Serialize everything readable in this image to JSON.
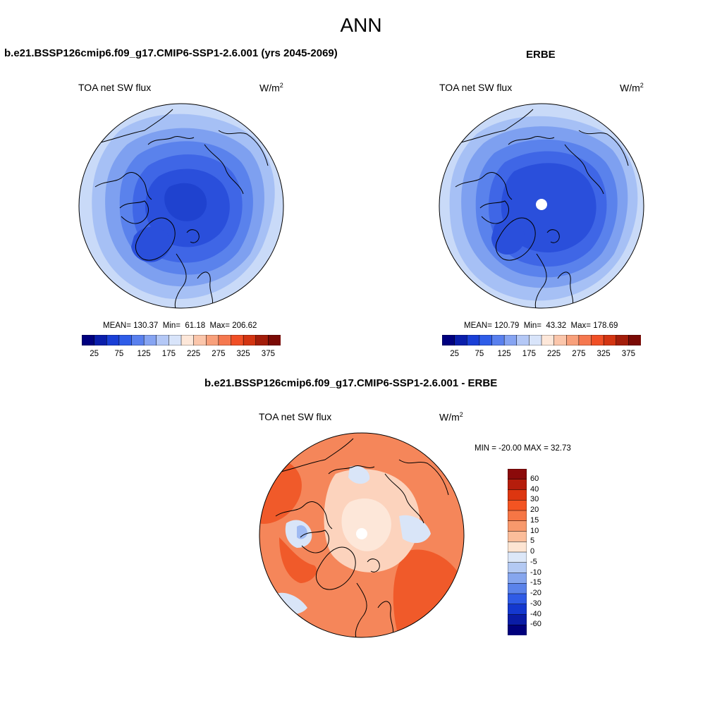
{
  "page": {
    "title": "ANN"
  },
  "panels": [
    {
      "case_title": "b.e21.BSSP126cmip6.f09_g17.CMIP6-SSP1-2.6.001 (yrs 2045-2069)",
      "variable": "TOA net SW flux",
      "units_base": "W/m",
      "units_exp": "2",
      "stats": {
        "mean_label": "MEAN=",
        "mean": "130.37",
        "min_label": "Min=",
        "min": "61.18",
        "max_label": "Max=",
        "max": "206.62"
      }
    },
    {
      "case_title": "ERBE",
      "variable": "TOA net SW flux",
      "units_base": "W/m",
      "units_exp": "2",
      "stats": {
        "mean_label": "MEAN=",
        "mean": "120.79",
        "min_label": "Min=",
        "min": "43.32",
        "max_label": "Max=",
        "max": "178.69"
      }
    },
    {
      "case_title": "b.e21.BSSP126cmip6.f09_g17.CMIP6-SSP1-2.6.001 - ERBE",
      "variable": "TOA net SW flux",
      "units_base": "W/m",
      "units_exp": "2",
      "stats_text": "MIN = -20.00 MAX =  32.73"
    }
  ],
  "colorbar_abs": {
    "labels": [
      "25",
      "75",
      "125",
      "175",
      "225",
      "275",
      "325",
      "375"
    ],
    "colors": [
      "#00007f",
      "#0a1eab",
      "#1a3fd6",
      "#2f5de8",
      "#5980ee",
      "#86a4f2",
      "#b4c8f6",
      "#d8e4fa",
      "#fde7d9",
      "#fbc6ab",
      "#f8a07b",
      "#f5784f",
      "#f04f26",
      "#d33512",
      "#a31d0a",
      "#7a0a05"
    ]
  },
  "colorbar_diff": {
    "labels": [
      "60",
      "40",
      "30",
      "20",
      "15",
      "10",
      "5",
      "0",
      "-5",
      "-10",
      "-15",
      "-20",
      "-30",
      "-40",
      "-60"
    ],
    "colors": [
      "#8b0a0a",
      "#b51d0c",
      "#dd3610",
      "#f35422",
      "#f67645",
      "#f8996c",
      "#fbbd9a",
      "#fde5d3",
      "#dce7f8",
      "#b3c9f3",
      "#86a6ee",
      "#5b83ea",
      "#2f5be6",
      "#1438cf",
      "#0a1ca6",
      "#00007d"
    ]
  },
  "fills": {
    "p1": [
      "#c9daf8",
      "#a6c0f5",
      "#7ea0f0",
      "#5a82ec",
      "#3f66e6",
      "#2a4fdb",
      "#1f42cf"
    ],
    "p2": [
      "#c9daf8",
      "#a6c0f5",
      "#7ea0f0",
      "#5a82ec",
      "#3f66e6",
      "#2a4fdb",
      "#1f42cf"
    ],
    "p3": [
      "#f05a2a",
      "#f5865a",
      "#f9ab86",
      "#fcd3bd",
      "#fde7d9",
      "#d9e5f8",
      "#9fbaf2"
    ]
  }
}
